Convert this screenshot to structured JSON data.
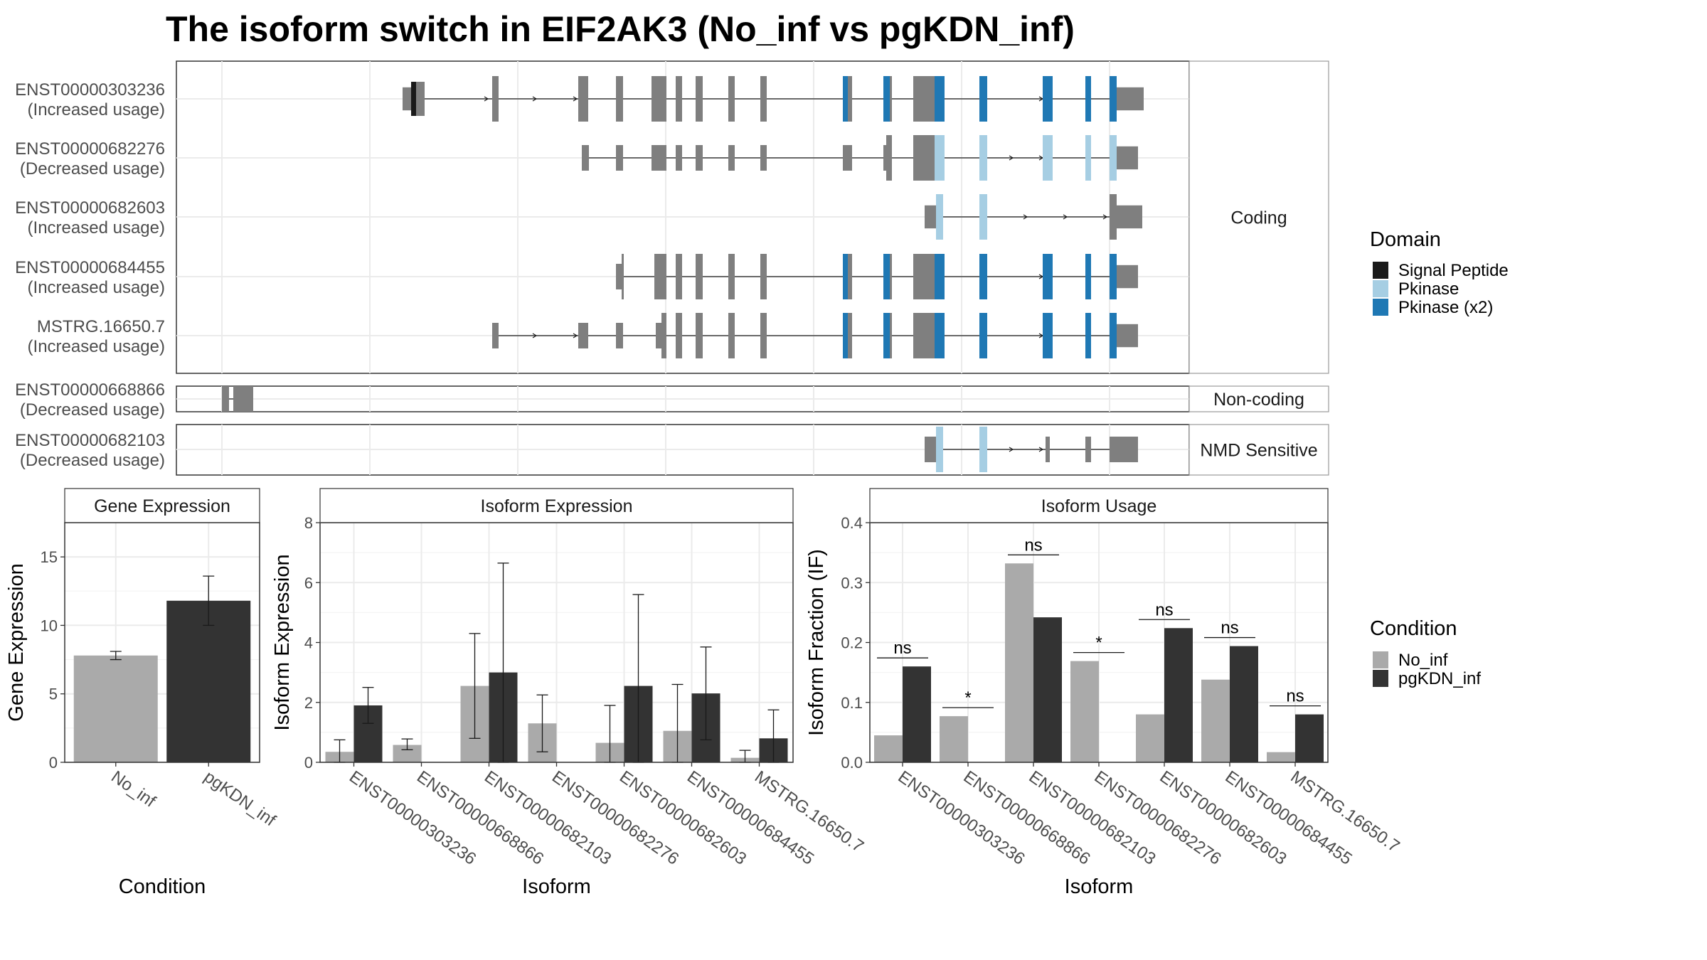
{
  "title": "The isoform switch in EIF2AK3 (No_inf vs pgKDN_inf)",
  "colors": {
    "signal_peptide": "#1a1a1a",
    "pkinase": "#a6cee3",
    "pkinase_x2": "#1f78b4",
    "exon": "#7f7f7f",
    "no_inf": "#aaaaaa",
    "pgkdn_inf": "#333333"
  },
  "structure": {
    "groups": [
      {
        "label": "Coding",
        "isoforms": [
          {
            "id": "ENST00000303236",
            "usage": "(Increased usage)"
          },
          {
            "id": "ENST00000682276",
            "usage": "(Decreased usage)"
          },
          {
            "id": "ENST00000682603",
            "usage": "(Increased usage)"
          },
          {
            "id": "ENST00000684455",
            "usage": "(Increased usage)"
          },
          {
            "id": "MSTRG.16650.7",
            "usage": "(Increased usage)"
          }
        ]
      },
      {
        "label": "Non-coding",
        "isoforms": [
          {
            "id": "ENST00000668866",
            "usage": "(Decreased usage)"
          }
        ]
      },
      {
        "label": "NMD Sensitive",
        "isoforms": [
          {
            "id": "ENST00000682103",
            "usage": "(Decreased usage)"
          }
        ]
      }
    ]
  },
  "legend_domain": {
    "title": "Domain",
    "items": [
      {
        "label": "Signal Peptide",
        "color": "#1a1a1a"
      },
      {
        "label": "Pkinase",
        "color": "#a6cee3"
      },
      {
        "label": "Pkinase (x2)",
        "color": "#1f78b4"
      }
    ]
  },
  "legend_condition": {
    "title": "Condition",
    "items": [
      {
        "label": "No_inf",
        "color": "#aaaaaa"
      },
      {
        "label": "pgKDN_inf",
        "color": "#333333"
      }
    ]
  },
  "chart_data": [
    {
      "type": "bar",
      "title": "Gene Expression",
      "xlabel": "Condition",
      "ylabel": "Gene Expression",
      "ylim": [
        0,
        17.5
      ],
      "yticks": [
        0,
        5,
        10,
        15
      ],
      "categories": [
        "No_inf",
        "pgKDN_inf"
      ],
      "values": [
        7.8,
        11.8
      ],
      "err_low": [
        7.5,
        10.0
      ],
      "err_high": [
        8.1,
        13.6
      ]
    },
    {
      "type": "bar",
      "title": "Isoform Expression",
      "xlabel": "Isoform",
      "ylabel": "Isoform Expression",
      "ylim": [
        0,
        8
      ],
      "yticks": [
        0,
        2,
        4,
        6,
        8
      ],
      "categories": [
        "ENST00000303236",
        "ENST00000668866",
        "ENST00000682103",
        "ENST00000682276",
        "ENST00000682603",
        "ENST00000684455",
        "MSTRG.16650.7"
      ],
      "series": [
        {
          "name": "No_inf",
          "values": [
            0.35,
            0.58,
            2.55,
            1.3,
            0.65,
            1.05,
            0.15
          ],
          "err_low": [
            0.0,
            0.42,
            0.8,
            0.35,
            0.0,
            0.0,
            0.0
          ],
          "err_high": [
            0.75,
            0.78,
            4.3,
            2.25,
            1.9,
            2.6,
            0.4
          ]
        },
        {
          "name": "pgKDN_inf",
          "values": [
            1.9,
            0.0,
            3.0,
            0.0,
            2.55,
            2.3,
            0.8
          ],
          "err_low": [
            1.3,
            0.0,
            0.0,
            0.0,
            0.0,
            0.75,
            0.0
          ],
          "err_high": [
            2.5,
            0.0,
            6.65,
            0.0,
            5.6,
            3.85,
            1.75
          ]
        }
      ]
    },
    {
      "type": "bar",
      "title": "Isoform Usage",
      "xlabel": "Isoform",
      "ylabel": "Isoform Fraction (IF)",
      "ylim": [
        0,
        0.4
      ],
      "yticks": [
        0.0,
        0.1,
        0.2,
        0.3,
        0.4
      ],
      "categories": [
        "ENST00000303236",
        "ENST00000668866",
        "ENST00000682103",
        "ENST00000682276",
        "ENST00000682603",
        "ENST00000684455",
        "MSTRG.16650.7"
      ],
      "series": [
        {
          "name": "No_inf",
          "values": [
            0.045,
            0.077,
            0.332,
            0.169,
            0.08,
            0.138,
            0.017
          ]
        },
        {
          "name": "pgKDN_inf",
          "values": [
            0.16,
            0.0,
            0.242,
            0.0,
            0.224,
            0.194,
            0.08
          ]
        }
      ],
      "significance": [
        "ns",
        "*",
        "ns",
        "*",
        "ns",
        "ns",
        "ns"
      ]
    }
  ]
}
